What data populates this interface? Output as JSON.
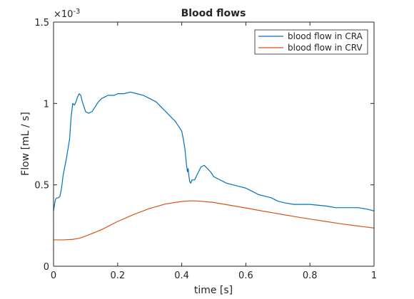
{
  "chart_data": {
    "type": "line",
    "title": "Blood flows",
    "xlabel": "time [s]",
    "ylabel": "Flow [mL / s]",
    "xlim": [
      0,
      1
    ],
    "ylim": [
      0,
      0.0015
    ],
    "xticks": [
      0,
      0.2,
      0.4,
      0.6,
      0.8,
      1
    ],
    "yticks": [
      0,
      0.0005,
      0.001,
      0.0015
    ],
    "xtick_labels": [
      "0",
      "0.2",
      "0.4",
      "0.6",
      "0.8",
      "1"
    ],
    "ytick_labels": [
      "0",
      "0.5",
      "1",
      "1.5"
    ],
    "y_multiplier": "×10",
    "y_multiplier_exp": "-3",
    "grid": false,
    "legend_position": "top-right",
    "series": [
      {
        "name": "blood flow in CRA",
        "color": "#0072BD",
        "points": [
          [
            0,
            0.00034
          ],
          [
            0.003,
            0.00038
          ],
          [
            0.006,
            0.00041
          ],
          [
            0.01,
            0.00042
          ],
          [
            0.015,
            0.00042
          ],
          [
            0.02,
            0.00043
          ],
          [
            0.025,
            0.00048
          ],
          [
            0.03,
            0.00056
          ],
          [
            0.04,
            0.00066
          ],
          [
            0.05,
            0.00078
          ],
          [
            0.055,
            0.00092
          ],
          [
            0.06,
            0.001
          ],
          [
            0.065,
            0.00099
          ],
          [
            0.07,
            0.00101
          ],
          [
            0.075,
            0.00104
          ],
          [
            0.08,
            0.00106
          ],
          [
            0.085,
            0.00105
          ],
          [
            0.09,
            0.00101
          ],
          [
            0.1,
            0.00095
          ],
          [
            0.11,
            0.00094
          ],
          [
            0.12,
            0.00095
          ],
          [
            0.13,
            0.00098
          ],
          [
            0.14,
            0.00101
          ],
          [
            0.15,
            0.00103
          ],
          [
            0.16,
            0.00104
          ],
          [
            0.17,
            0.00105
          ],
          [
            0.18,
            0.00105
          ],
          [
            0.19,
            0.00105
          ],
          [
            0.2,
            0.00106
          ],
          [
            0.22,
            0.00106
          ],
          [
            0.24,
            0.00107
          ],
          [
            0.26,
            0.00106
          ],
          [
            0.28,
            0.00105
          ],
          [
            0.3,
            0.00103
          ],
          [
            0.32,
            0.00101
          ],
          [
            0.34,
            0.00097
          ],
          [
            0.36,
            0.00093
          ],
          [
            0.38,
            0.00089
          ],
          [
            0.39,
            0.00086
          ],
          [
            0.4,
            0.00083
          ],
          [
            0.405,
            0.00078
          ],
          [
            0.41,
            0.00072
          ],
          [
            0.415,
            0.00062
          ],
          [
            0.418,
            0.00058
          ],
          [
            0.42,
            0.0006
          ],
          [
            0.422,
            0.00056
          ],
          [
            0.425,
            0.00052
          ],
          [
            0.428,
            0.00051
          ],
          [
            0.432,
            0.00053
          ],
          [
            0.44,
            0.00053
          ],
          [
            0.45,
            0.00057
          ],
          [
            0.46,
            0.00061
          ],
          [
            0.47,
            0.00062
          ],
          [
            0.48,
            0.0006
          ],
          [
            0.49,
            0.00058
          ],
          [
            0.5,
            0.00055
          ],
          [
            0.52,
            0.00053
          ],
          [
            0.54,
            0.00051
          ],
          [
            0.56,
            0.0005
          ],
          [
            0.58,
            0.00049
          ],
          [
            0.6,
            0.00048
          ],
          [
            0.62,
            0.00046
          ],
          [
            0.64,
            0.00044
          ],
          [
            0.66,
            0.00043
          ],
          [
            0.68,
            0.00042
          ],
          [
            0.7,
            0.0004
          ],
          [
            0.72,
            0.00039
          ],
          [
            0.75,
            0.00038
          ],
          [
            0.8,
            0.00038
          ],
          [
            0.85,
            0.00037
          ],
          [
            0.88,
            0.00036
          ],
          [
            0.9,
            0.00036
          ],
          [
            0.92,
            0.00036
          ],
          [
            0.95,
            0.00036
          ],
          [
            0.98,
            0.00035
          ],
          [
            1.0,
            0.00034
          ]
        ]
      },
      {
        "name": "blood flow in CRV",
        "color": "#D95319",
        "points": [
          [
            0,
            0.000162
          ],
          [
            0.03,
            0.000162
          ],
          [
            0.06,
            0.000165
          ],
          [
            0.08,
            0.000172
          ],
          [
            0.1,
            0.000185
          ],
          [
            0.15,
            0.000225
          ],
          [
            0.2,
            0.000275
          ],
          [
            0.25,
            0.000318
          ],
          [
            0.3,
            0.000355
          ],
          [
            0.35,
            0.000383
          ],
          [
            0.4,
            0.000398
          ],
          [
            0.43,
            0.000402
          ],
          [
            0.45,
            0.000401
          ],
          [
            0.5,
            0.000392
          ],
          [
            0.55,
            0.000375
          ],
          [
            0.6,
            0.000358
          ],
          [
            0.65,
            0.00034
          ],
          [
            0.7,
            0.000323
          ],
          [
            0.75,
            0.000306
          ],
          [
            0.8,
            0.00029
          ],
          [
            0.85,
            0.000275
          ],
          [
            0.9,
            0.00026
          ],
          [
            0.95,
            0.000247
          ],
          [
            1.0,
            0.000235
          ]
        ]
      }
    ]
  }
}
